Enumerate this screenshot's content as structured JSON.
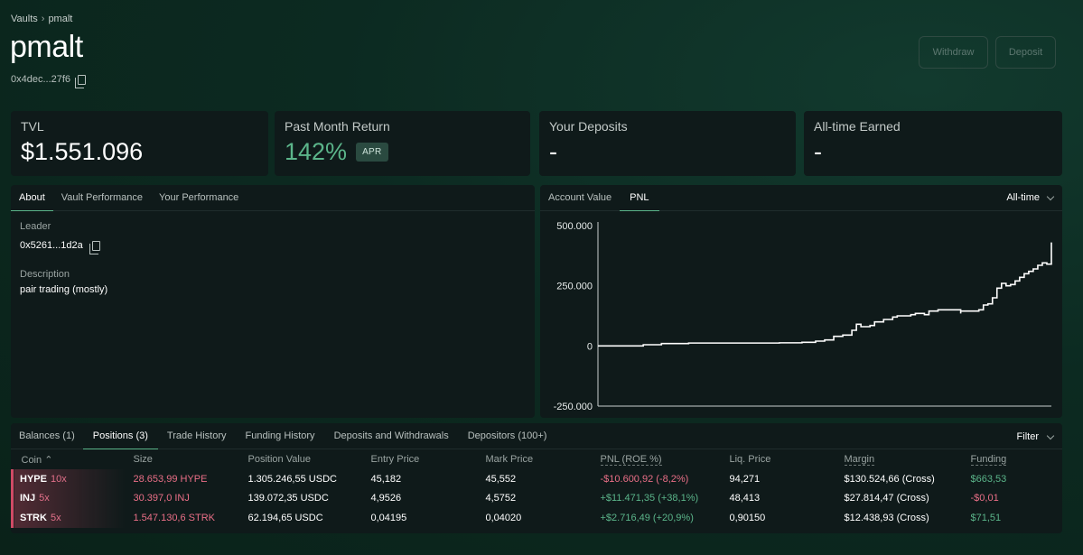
{
  "breadcrumb": {
    "root": "Vaults",
    "current": "pmalt"
  },
  "title": "pmalt",
  "address": "0x4dec...27f6",
  "buttons": {
    "withdraw": "Withdraw",
    "deposit": "Deposit"
  },
  "stats": {
    "tvl": {
      "label": "TVL",
      "value": "$1.551.096"
    },
    "month_return": {
      "label": "Past Month Return",
      "value": "142%",
      "badge": "APR"
    },
    "deposits": {
      "label": "Your Deposits",
      "value": "-"
    },
    "earned": {
      "label": "All-time Earned",
      "value": "-"
    }
  },
  "info_tabs": [
    "About",
    "Vault Performance",
    "Your Performance"
  ],
  "about": {
    "leader_label": "Leader",
    "leader_value": "0x5261...1d2a",
    "description_label": "Description",
    "description_value": "pair trading (mostly)"
  },
  "chart_tabs": [
    "Account Value",
    "PNL"
  ],
  "chart_range": "All-time",
  "chart_data": {
    "type": "line",
    "yticks": [
      "500.000",
      "250.000",
      "0",
      "-250.000"
    ],
    "ylim": [
      -250000,
      500000
    ],
    "x": [
      0,
      0.08,
      0.1,
      0.14,
      0.2,
      0.3,
      0.4,
      0.45,
      0.48,
      0.5,
      0.52,
      0.54,
      0.56,
      0.57,
      0.58,
      0.6,
      0.61,
      0.63,
      0.65,
      0.66,
      0.69,
      0.7,
      0.72,
      0.73,
      0.75,
      0.8,
      0.8,
      0.84,
      0.85,
      0.86,
      0.87,
      0.88,
      0.89,
      0.9,
      0.91,
      0.92,
      0.93,
      0.94,
      0.95,
      0.96,
      0.97,
      0.98,
      0.99,
      1.0
    ],
    "values": [
      0,
      0,
      5000,
      10000,
      12000,
      12000,
      13000,
      15000,
      20000,
      25000,
      40000,
      45000,
      65000,
      90000,
      80000,
      85000,
      100000,
      110000,
      120000,
      125000,
      130000,
      135000,
      130000,
      145000,
      150000,
      135000,
      145000,
      150000,
      170000,
      175000,
      200000,
      240000,
      260000,
      250000,
      255000,
      270000,
      285000,
      300000,
      310000,
      320000,
      335000,
      345000,
      340000,
      430000
    ]
  },
  "position_tabs": [
    "Balances (1)",
    "Positions (3)",
    "Trade History",
    "Funding History",
    "Deposits and Withdrawals",
    "Depositors (100+)"
  ],
  "filter_label": "Filter",
  "table": {
    "headers": [
      "Coin",
      "Size",
      "Position Value",
      "Entry Price",
      "Mark Price",
      "PNL (ROE %)",
      "Liq. Price",
      "Margin",
      "Funding"
    ],
    "sort_icon": "chevron-up-icon",
    "rows": [
      {
        "coin": "HYPE",
        "lev": "10x",
        "size": "28.653,99 HYPE",
        "value": "1.305.246,55 USDC",
        "entry": "45,182",
        "mark": "45,552",
        "pnl": "-$10.600,92 (-8,2%)",
        "pnl_sign": "neg",
        "liq": "94,271",
        "margin": "$130.524,66 (Cross)",
        "funding": "$663,53",
        "funding_sign": "pos"
      },
      {
        "coin": "INJ",
        "lev": "5x",
        "size": "30.397,0 INJ",
        "value": "139.072,35 USDC",
        "entry": "4,9526",
        "mark": "4,5752",
        "pnl": "+$11.471,35 (+38,1%)",
        "pnl_sign": "pos",
        "liq": "48,413",
        "margin": "$27.814,47 (Cross)",
        "funding": "-$0,01",
        "funding_sign": "neg"
      },
      {
        "coin": "STRK",
        "lev": "5x",
        "size": "1.547.130,6 STRK",
        "value": "62.194,65 USDC",
        "entry": "0,04195",
        "mark": "0,04020",
        "pnl": "+$2.716,49 (+20,9%)",
        "pnl_sign": "pos",
        "liq": "0,90150",
        "margin": "$12.438,93 (Cross)",
        "funding": "$71,51",
        "funding_sign": "pos"
      }
    ]
  }
}
